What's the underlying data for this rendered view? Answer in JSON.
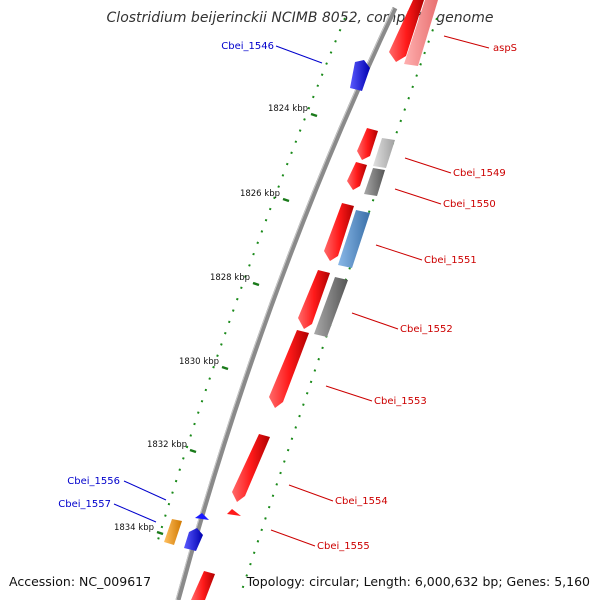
{
  "title": "Clostridium beijerinckii NCIMB 8052, complete genome",
  "footer": {
    "accession": "Accession: NC_009617",
    "info": "Topology: circular; Length: 6,000,632 bp; Genes: 5,160"
  },
  "kbp_ticks": [
    "1824 kbp",
    "1826 kbp",
    "1828 kbp",
    "1830 kbp",
    "1832 kbp",
    "1834 kbp"
  ],
  "gene_labels": {
    "left": [
      "Cbei_1546",
      "Cbei_1556",
      "Cbei_1557"
    ],
    "right": [
      "aspS",
      "Cbei_1549",
      "Cbei_1550",
      "Cbei_1551",
      "Cbei_1552",
      "Cbei_1553",
      "Cbei_1554",
      "Cbei_1555"
    ]
  },
  "colors": {
    "forward_label": "#0000cc",
    "reverse_label": "#cc0000",
    "gene_red": "#ff1a1a",
    "gene_blue": "#1a1aff",
    "gene_orange": "#f0a020",
    "gene_steel": "#5a8fc8",
    "gene_gray": "#8c8c8c",
    "backbone": "#8a8a8a",
    "gc_dots": "#1a8a1a"
  }
}
